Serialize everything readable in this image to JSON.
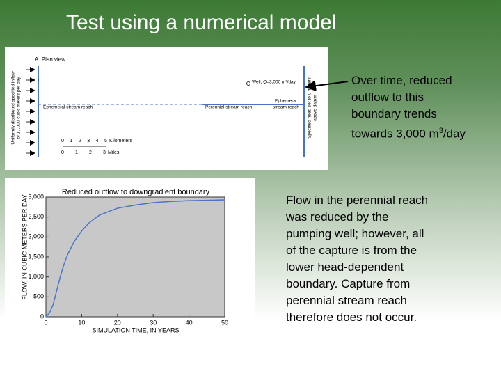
{
  "title": "Test using a numerical model",
  "plan_view": {
    "label": "A. Plan view",
    "well": "Well, Q=3,000 m³/day",
    "left_reach": "Ephemeral stream reach",
    "perennial_reach": "Perennial stream reach",
    "right_reach_lines": [
      "Ephemeral",
      "stream reach"
    ],
    "inflow_lines": [
      "Uniformly distributed specified inflow",
      "of 17,000 cubic meters per day"
    ],
    "head_lines": [
      "Specified head set to 0 meters",
      "above datum"
    ],
    "km_labels": [
      "0",
      "1",
      "2",
      "3",
      "4",
      "5"
    ],
    "km_unit": "Kilometers",
    "mile_labels": [
      "0",
      "1",
      "2",
      "3"
    ],
    "mile_unit": "Miles"
  },
  "annotation_top": {
    "lines": [
      "Over time, reduced",
      "outflow to this",
      "boundary trends"
    ],
    "last_line": "towards 3,000 m",
    "superscript": "3",
    "last_line_end": "/day"
  },
  "annotation_bottom": {
    "lines": [
      "Flow in the perennial reach",
      "was reduced by the",
      "pumping well; however, all",
      "of the capture is from the",
      "lower head-dependent",
      "boundary. Capture from",
      "perennial stream reach",
      "therefore does not occur."
    ]
  },
  "chart_data": {
    "type": "line",
    "title": "Reduced outflow to downgradient boundary",
    "x_label": "SIMULATION TIME, IN YEARS",
    "y_label": "FLOW, IN CUBIC METERS PER DAY",
    "xlim": [
      0,
      50
    ],
    "ylim": [
      0,
      3000
    ],
    "xticks": [
      0,
      10,
      20,
      30,
      40,
      50
    ],
    "yticks": [
      0,
      500,
      {
        "value": 1000,
        "label": "1,000"
      },
      {
        "value": 1500,
        "label": "1,500"
      },
      {
        "value": 2000,
        "label": "2,000"
      },
      {
        "value": 2500,
        "label": "2,500"
      },
      {
        "value": 3000,
        "label": "3,000"
      }
    ],
    "x": [
      0,
      1,
      2,
      3,
      4,
      5,
      6,
      8,
      10,
      12,
      15,
      20,
      25,
      30,
      35,
      40,
      45,
      50
    ],
    "series": [
      {
        "color": "#4a74c9",
        "values": [
          0,
          100,
          300,
          650,
          1000,
          1300,
          1550,
          1900,
          2150,
          2350,
          2550,
          2720,
          2800,
          2860,
          2890,
          2910,
          2920,
          2930
        ]
      }
    ],
    "background": "#c8c8c8"
  }
}
